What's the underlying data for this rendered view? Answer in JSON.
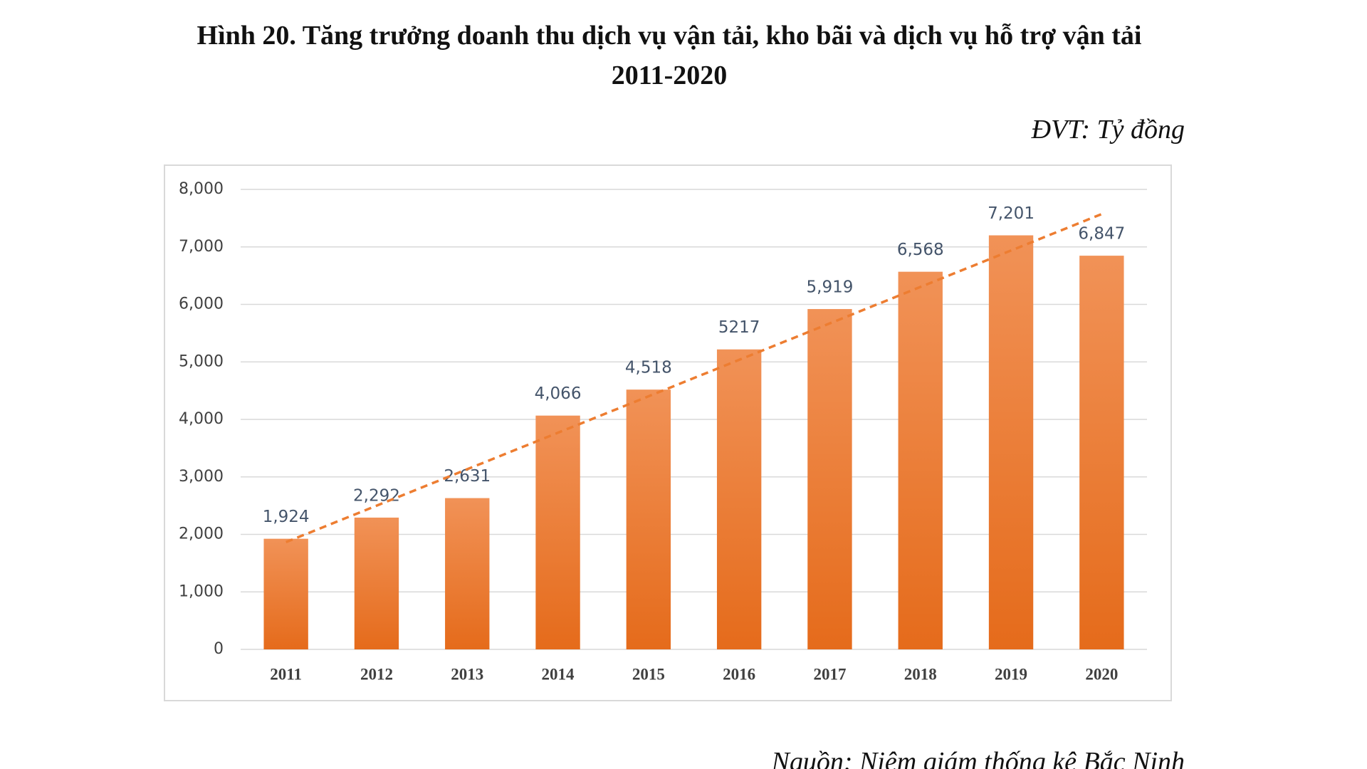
{
  "chart_data": {
    "type": "bar",
    "title": "Hình 20. Tăng trưởng doanh thu dịch vụ vận tải, kho bãi và dịch vụ hỗ trợ vận tải 2011-2020",
    "unit_note": "ĐVT: Tỷ đồng",
    "source": "Nguồn: Niêm giám thống kê Bắc Ninh",
    "categories": [
      "2011",
      "2012",
      "2013",
      "2014",
      "2015",
      "2016",
      "2017",
      "2018",
      "2019",
      "2020"
    ],
    "values": [
      1924,
      2292,
      2631,
      4066,
      4518,
      5217,
      5919,
      6568,
      7201,
      6847
    ],
    "value_labels": [
      "1,924",
      "2,292",
      "2,631",
      "4,066",
      "4,518",
      "5217",
      "5,919",
      "6,568",
      "7,201",
      "6,847"
    ],
    "color": "#ed7d31",
    "ylim": [
      0,
      8000
    ],
    "yticks": [
      0,
      {
        "value": 1000,
        "label": "1,000"
      },
      {
        "value": 2000,
        "label": "2,000"
      },
      {
        "value": 3000,
        "label": "3,000"
      },
      {
        "value": 4000,
        "label": "4,000"
      },
      {
        "value": 5000,
        "label": "5,000"
      },
      {
        "value": 6000,
        "label": "6,000"
      },
      {
        "value": 7000,
        "label": "7,000"
      },
      {
        "value": 8000,
        "label": "8,000"
      }
    ],
    "grid": true,
    "trendline": true
  }
}
